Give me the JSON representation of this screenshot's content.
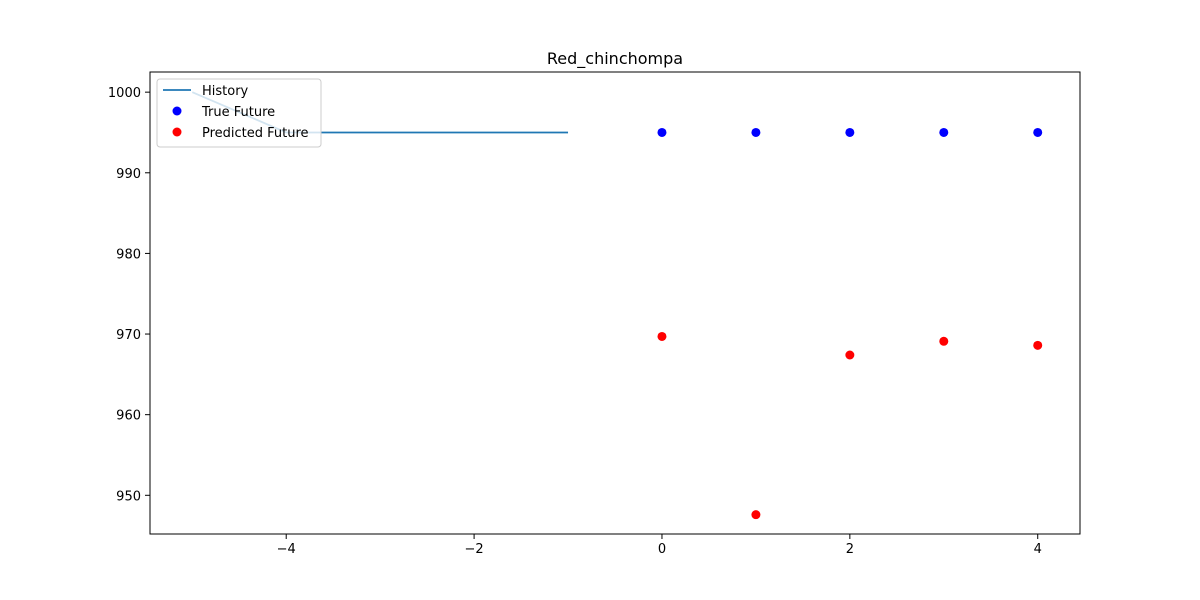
{
  "chart_data": {
    "type": "scatter",
    "title": "Red_chinchompa",
    "xlabel": "",
    "ylabel": "",
    "xlim": [
      -5.45,
      4.45
    ],
    "ylim": [
      945.2,
      1002.5
    ],
    "xticks": [
      -4,
      -2,
      0,
      2,
      4
    ],
    "xtick_labels": [
      "−4",
      "−2",
      "0",
      "2",
      "4"
    ],
    "yticks": [
      950,
      960,
      970,
      980,
      990,
      1000
    ],
    "ytick_labels": [
      "950",
      "960",
      "970",
      "980",
      "990",
      "1000"
    ],
    "grid": false,
    "legend_position": "top-left",
    "series": [
      {
        "name": "History",
        "kind": "line",
        "color": "#1f77b4",
        "x": [
          -5,
          -4,
          -3,
          -2,
          -1
        ],
        "y": [
          1000,
          995,
          995,
          995,
          995
        ]
      },
      {
        "name": "True Future",
        "kind": "scatter",
        "color": "#0000ff",
        "x": [
          0,
          1,
          2,
          3,
          4
        ],
        "y": [
          995,
          995,
          995,
          995,
          995
        ]
      },
      {
        "name": "Predicted Future",
        "kind": "scatter",
        "color": "#ff0000",
        "x": [
          0,
          1,
          2,
          3,
          4
        ],
        "y": [
          969.7,
          947.6,
          967.4,
          969.1,
          968.6
        ]
      }
    ]
  }
}
